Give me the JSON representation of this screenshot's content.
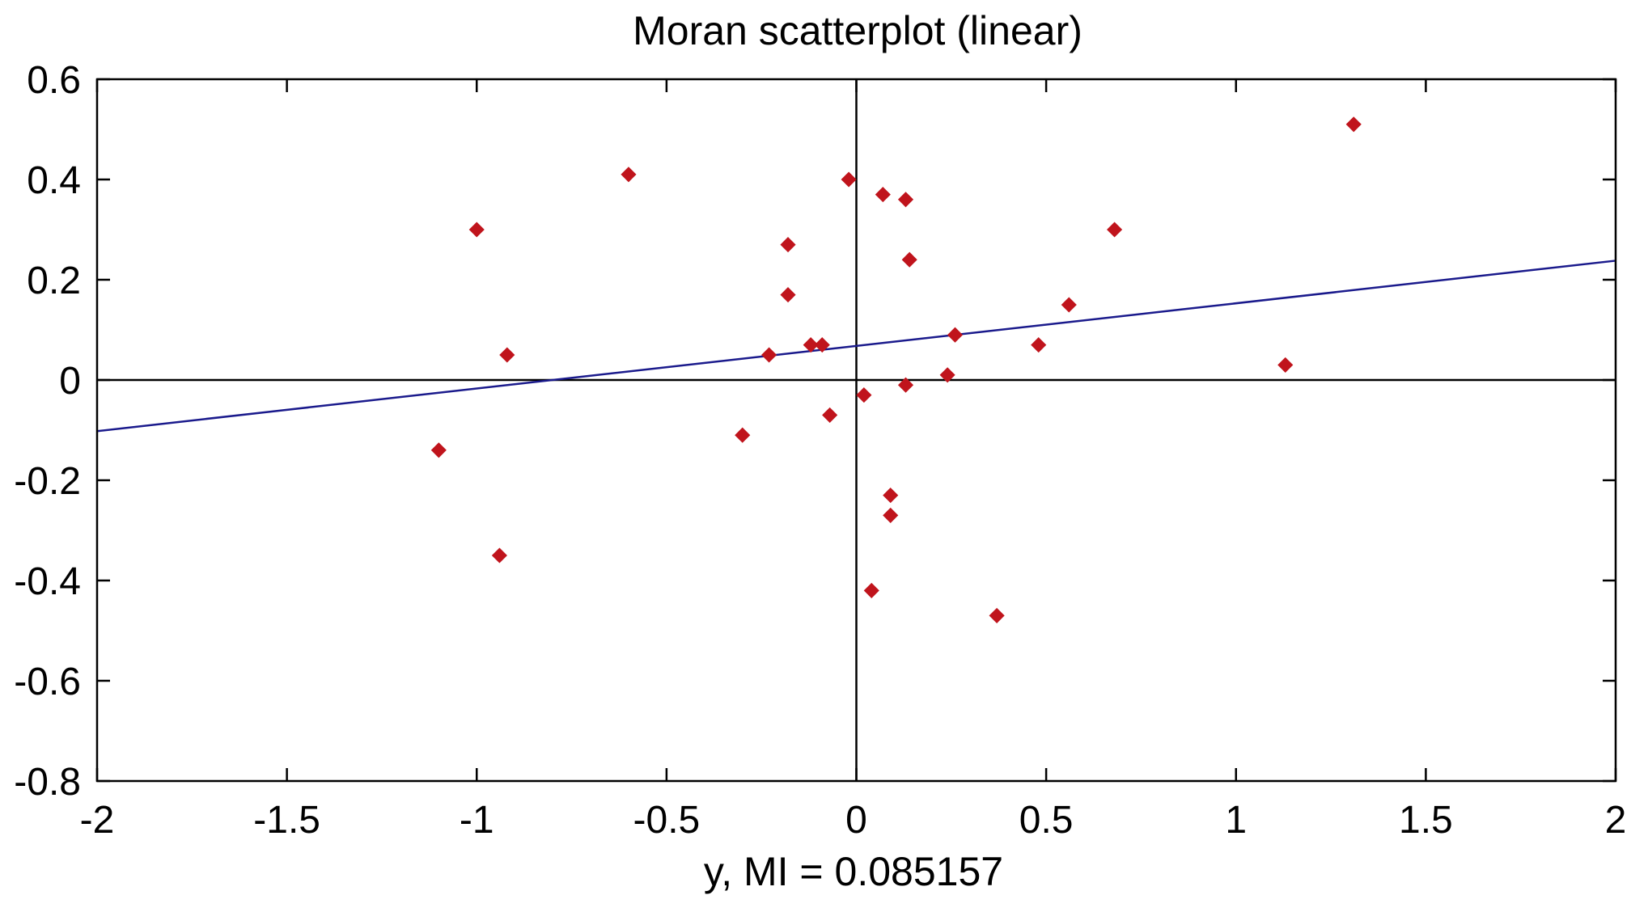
{
  "chart_data": {
    "type": "scatter",
    "title": "Moran scatterplot (linear)",
    "xlabel": "y,  MI = 0.085157",
    "ylabel": "",
    "xlim": [
      -2,
      2
    ],
    "ylim": [
      -0.8,
      0.6
    ],
    "x_ticks": [
      -2,
      -1.5,
      -1,
      -0.5,
      0,
      0.5,
      1,
      1.5,
      2
    ],
    "x_tick_labels": [
      "-2",
      "-1.5",
      "-1",
      "-0.5",
      "0",
      "0.5",
      "1",
      "1.5",
      "2"
    ],
    "y_ticks": [
      0.6,
      0.4,
      0.2,
      0,
      -0.2,
      -0.4,
      -0.6,
      -0.8
    ],
    "y_tick_labels": [
      "0.6",
      "0.4",
      "0.2",
      "0",
      "-0.2",
      "-0.4",
      "-0.6",
      "-0.8"
    ],
    "grid": false,
    "legend": "none",
    "zero_lines": {
      "x": 0,
      "y": 0,
      "color": "#000000"
    },
    "regression_line": {
      "x": [
        -2,
        2
      ],
      "y": [
        -0.102,
        0.238
      ],
      "color": "#1a1a8c"
    },
    "series": [
      {
        "color": "#c0141c",
        "marker": "diamond",
        "points": [
          {
            "x": 1.31,
            "y": 0.51
          },
          {
            "x": -0.6,
            "y": 0.41
          },
          {
            "x": -0.02,
            "y": 0.4
          },
          {
            "x": 0.07,
            "y": 0.37
          },
          {
            "x": 0.13,
            "y": 0.36
          },
          {
            "x": -1.0,
            "y": 0.3
          },
          {
            "x": 0.68,
            "y": 0.3
          },
          {
            "x": -0.18,
            "y": 0.27
          },
          {
            "x": 0.14,
            "y": 0.24
          },
          {
            "x": -0.18,
            "y": 0.17
          },
          {
            "x": 0.56,
            "y": 0.15
          },
          {
            "x": 0.26,
            "y": 0.09
          },
          {
            "x": 0.48,
            "y": 0.07
          },
          {
            "x": -0.12,
            "y": 0.07
          },
          {
            "x": -0.09,
            "y": 0.07
          },
          {
            "x": -0.23,
            "y": 0.05
          },
          {
            "x": -0.92,
            "y": 0.05
          },
          {
            "x": 1.13,
            "y": 0.03
          },
          {
            "x": 0.24,
            "y": 0.01
          },
          {
            "x": 0.13,
            "y": -0.01
          },
          {
            "x": 0.02,
            "y": -0.03
          },
          {
            "x": -0.07,
            "y": -0.07
          },
          {
            "x": -0.3,
            "y": -0.11
          },
          {
            "x": -1.1,
            "y": -0.14
          },
          {
            "x": 0.09,
            "y": -0.23
          },
          {
            "x": 0.09,
            "y": -0.27
          },
          {
            "x": -0.94,
            "y": -0.35
          },
          {
            "x": 0.04,
            "y": -0.42
          },
          {
            "x": 0.37,
            "y": -0.47
          }
        ]
      }
    ]
  }
}
